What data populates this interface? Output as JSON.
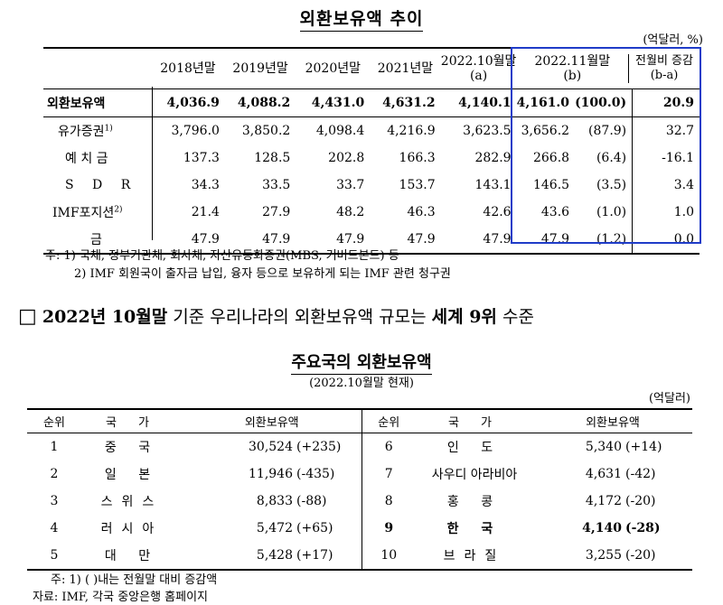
{
  "reserves_section": {
    "title": "외환보유액 추이",
    "unit": "(억달러, %)",
    "headers": {
      "label": "",
      "y2018": "2018년말",
      "y2019": "2019년말",
      "y2020": "2020년말",
      "y2021": "2021년말",
      "oct2022_line1": "2022.10월말",
      "oct2022_line2": "(a)",
      "nov2022_line1": "2022.11월말",
      "nov2022_line2": "(b)",
      "change_line1": "전월비 증감",
      "change_line2": "(b-a)"
    },
    "rows": [
      {
        "label": "외환보유액",
        "y2018": "4,036.9",
        "y2019": "4,088.2",
        "y2020": "4,431.0",
        "y2021": "4,631.2",
        "oct2022": "4,140.1",
        "nov2022": "4,161.0",
        "share": "(100.0)",
        "change": "20.9"
      },
      {
        "label": "유가증권",
        "sup": "1)",
        "y2018": "3,796.0",
        "y2019": "3,850.2",
        "y2020": "4,098.4",
        "y2021": "4,216.9",
        "oct2022": "3,623.5",
        "nov2022": "3,656.2",
        "share": "(87.9)",
        "change": "32.7"
      },
      {
        "label": "예 치 금",
        "y2018": "137.3",
        "y2019": "128.5",
        "y2020": "202.8",
        "y2021": "166.3",
        "oct2022": "282.9",
        "nov2022": "266.8",
        "share": "(6.4)",
        "change": "-16.1"
      },
      {
        "label": "S D R",
        "y2018": "34.3",
        "y2019": "33.5",
        "y2020": "33.7",
        "y2021": "153.7",
        "oct2022": "143.1",
        "nov2022": "146.5",
        "share": "(3.5)",
        "change": "3.4"
      },
      {
        "label": "IMF포지션",
        "sup": "2)",
        "y2018": "21.4",
        "y2019": "27.9",
        "y2020": "48.2",
        "y2021": "46.3",
        "oct2022": "42.6",
        "nov2022": "43.6",
        "share": "(1.0)",
        "change": "1.0"
      },
      {
        "label": "금",
        "y2018": "47.9",
        "y2019": "47.9",
        "y2020": "47.9",
        "y2021": "47.9",
        "oct2022": "47.9",
        "nov2022": "47.9",
        "share": "(1.2)",
        "change": "0.0"
      }
    ],
    "notes": [
      "주: 1) 국채, 정부기관채, 회사채, 자산유동화증권(MBS, 커버드본드) 등",
      "2) IMF 회원국이 출자금 납입, 융자 등으로 보유하게 되는 IMF 관련 청구권"
    ]
  },
  "headline": {
    "box": "□",
    "pre": "2022년 10월말",
    "mid1": " 기준 우리나라의 외환보유액 규모는 ",
    "bold2": "세계 9위",
    "post": " 수준"
  },
  "ranking_section": {
    "title": "주요국의 외환보유액",
    "subtitle": "(2022.10월말 현재)",
    "unit": "(억달러)",
    "headers": {
      "rank": "순위",
      "country": "국 가",
      "reserves": "외환보유액"
    },
    "left": [
      {
        "rank": "1",
        "country": "중 국",
        "value": "30,524",
        "change": "(+235)"
      },
      {
        "rank": "2",
        "country": "일 본",
        "value": "11,946",
        "change": "(-435)"
      },
      {
        "rank": "3",
        "country": "스위스",
        "value": "8,833",
        "change": "(-88)"
      },
      {
        "rank": "4",
        "country": "러시아",
        "value": "5,472",
        "change": "(+65)"
      },
      {
        "rank": "5",
        "country": "대 만",
        "value": "5,428",
        "change": "(+17)"
      }
    ],
    "right": [
      {
        "rank": "6",
        "country": "인 도",
        "value": "5,340",
        "change": "(+14)"
      },
      {
        "rank": "7",
        "country": "사우디 아라비아",
        "value": "4,631",
        "change": "(-42)"
      },
      {
        "rank": "8",
        "country": "홍 콩",
        "value": "4,172",
        "change": "(-20)"
      },
      {
        "rank": "9",
        "country": "한 국",
        "value": "4,140",
        "change": "(-28)"
      },
      {
        "rank": "10",
        "country": "브라질",
        "value": "3,255",
        "change": "(-20)"
      }
    ],
    "notes": [
      "주: 1) (   )내는 전월말 대비 증감액",
      "자료: IMF, 각국 중앙은행 홈페이지"
    ]
  },
  "colors": {
    "highlight_box": "#1f3cc8"
  }
}
